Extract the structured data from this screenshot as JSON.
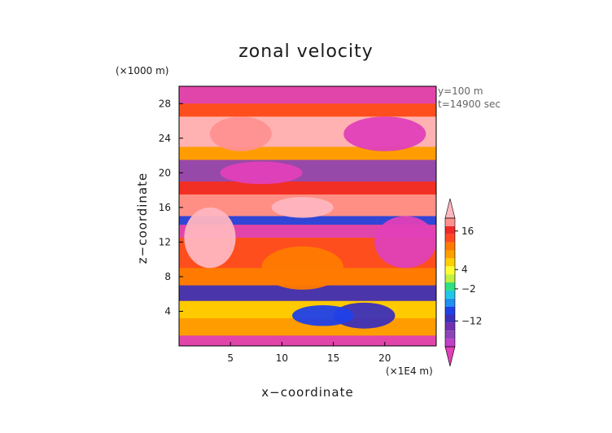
{
  "chart_data": {
    "type": "heatmap",
    "title": "zonal velocity",
    "xlabel": "x−coordinate",
    "ylabel": "z−coordinate",
    "x_units": "(×1E4 m)",
    "y_units": "(×1000 m)",
    "annotations": [
      "y=100 m",
      "t=14900 sec"
    ],
    "xlim": [
      0,
      25
    ],
    "ylim": [
      0,
      30
    ],
    "x_ticks": [
      5,
      10,
      15,
      20
    ],
    "y_ticks": [
      4,
      8,
      12,
      16,
      20,
      24,
      28
    ],
    "colorbar": {
      "tick_labels": [
        "16",
        "4",
        "−2",
        "−12"
      ],
      "tick_values": [
        16,
        4,
        -2,
        -12
      ],
      "min_arrow_color": "#e040b8",
      "max_arrow_color": "#ffb6c0",
      "colors": [
        "#c040c8",
        "#8e44b8",
        "#7030b0",
        "#3c2fb8",
        "#2040e8",
        "#1e90f0",
        "#20c8e8",
        "#30e080",
        "#c0f040",
        "#ffff30",
        "#ffd000",
        "#ffa000",
        "#ff7a00",
        "#ff4a20",
        "#f02828",
        "#ff9090"
      ]
    },
    "grid": false,
    "legend_placement": "right"
  }
}
